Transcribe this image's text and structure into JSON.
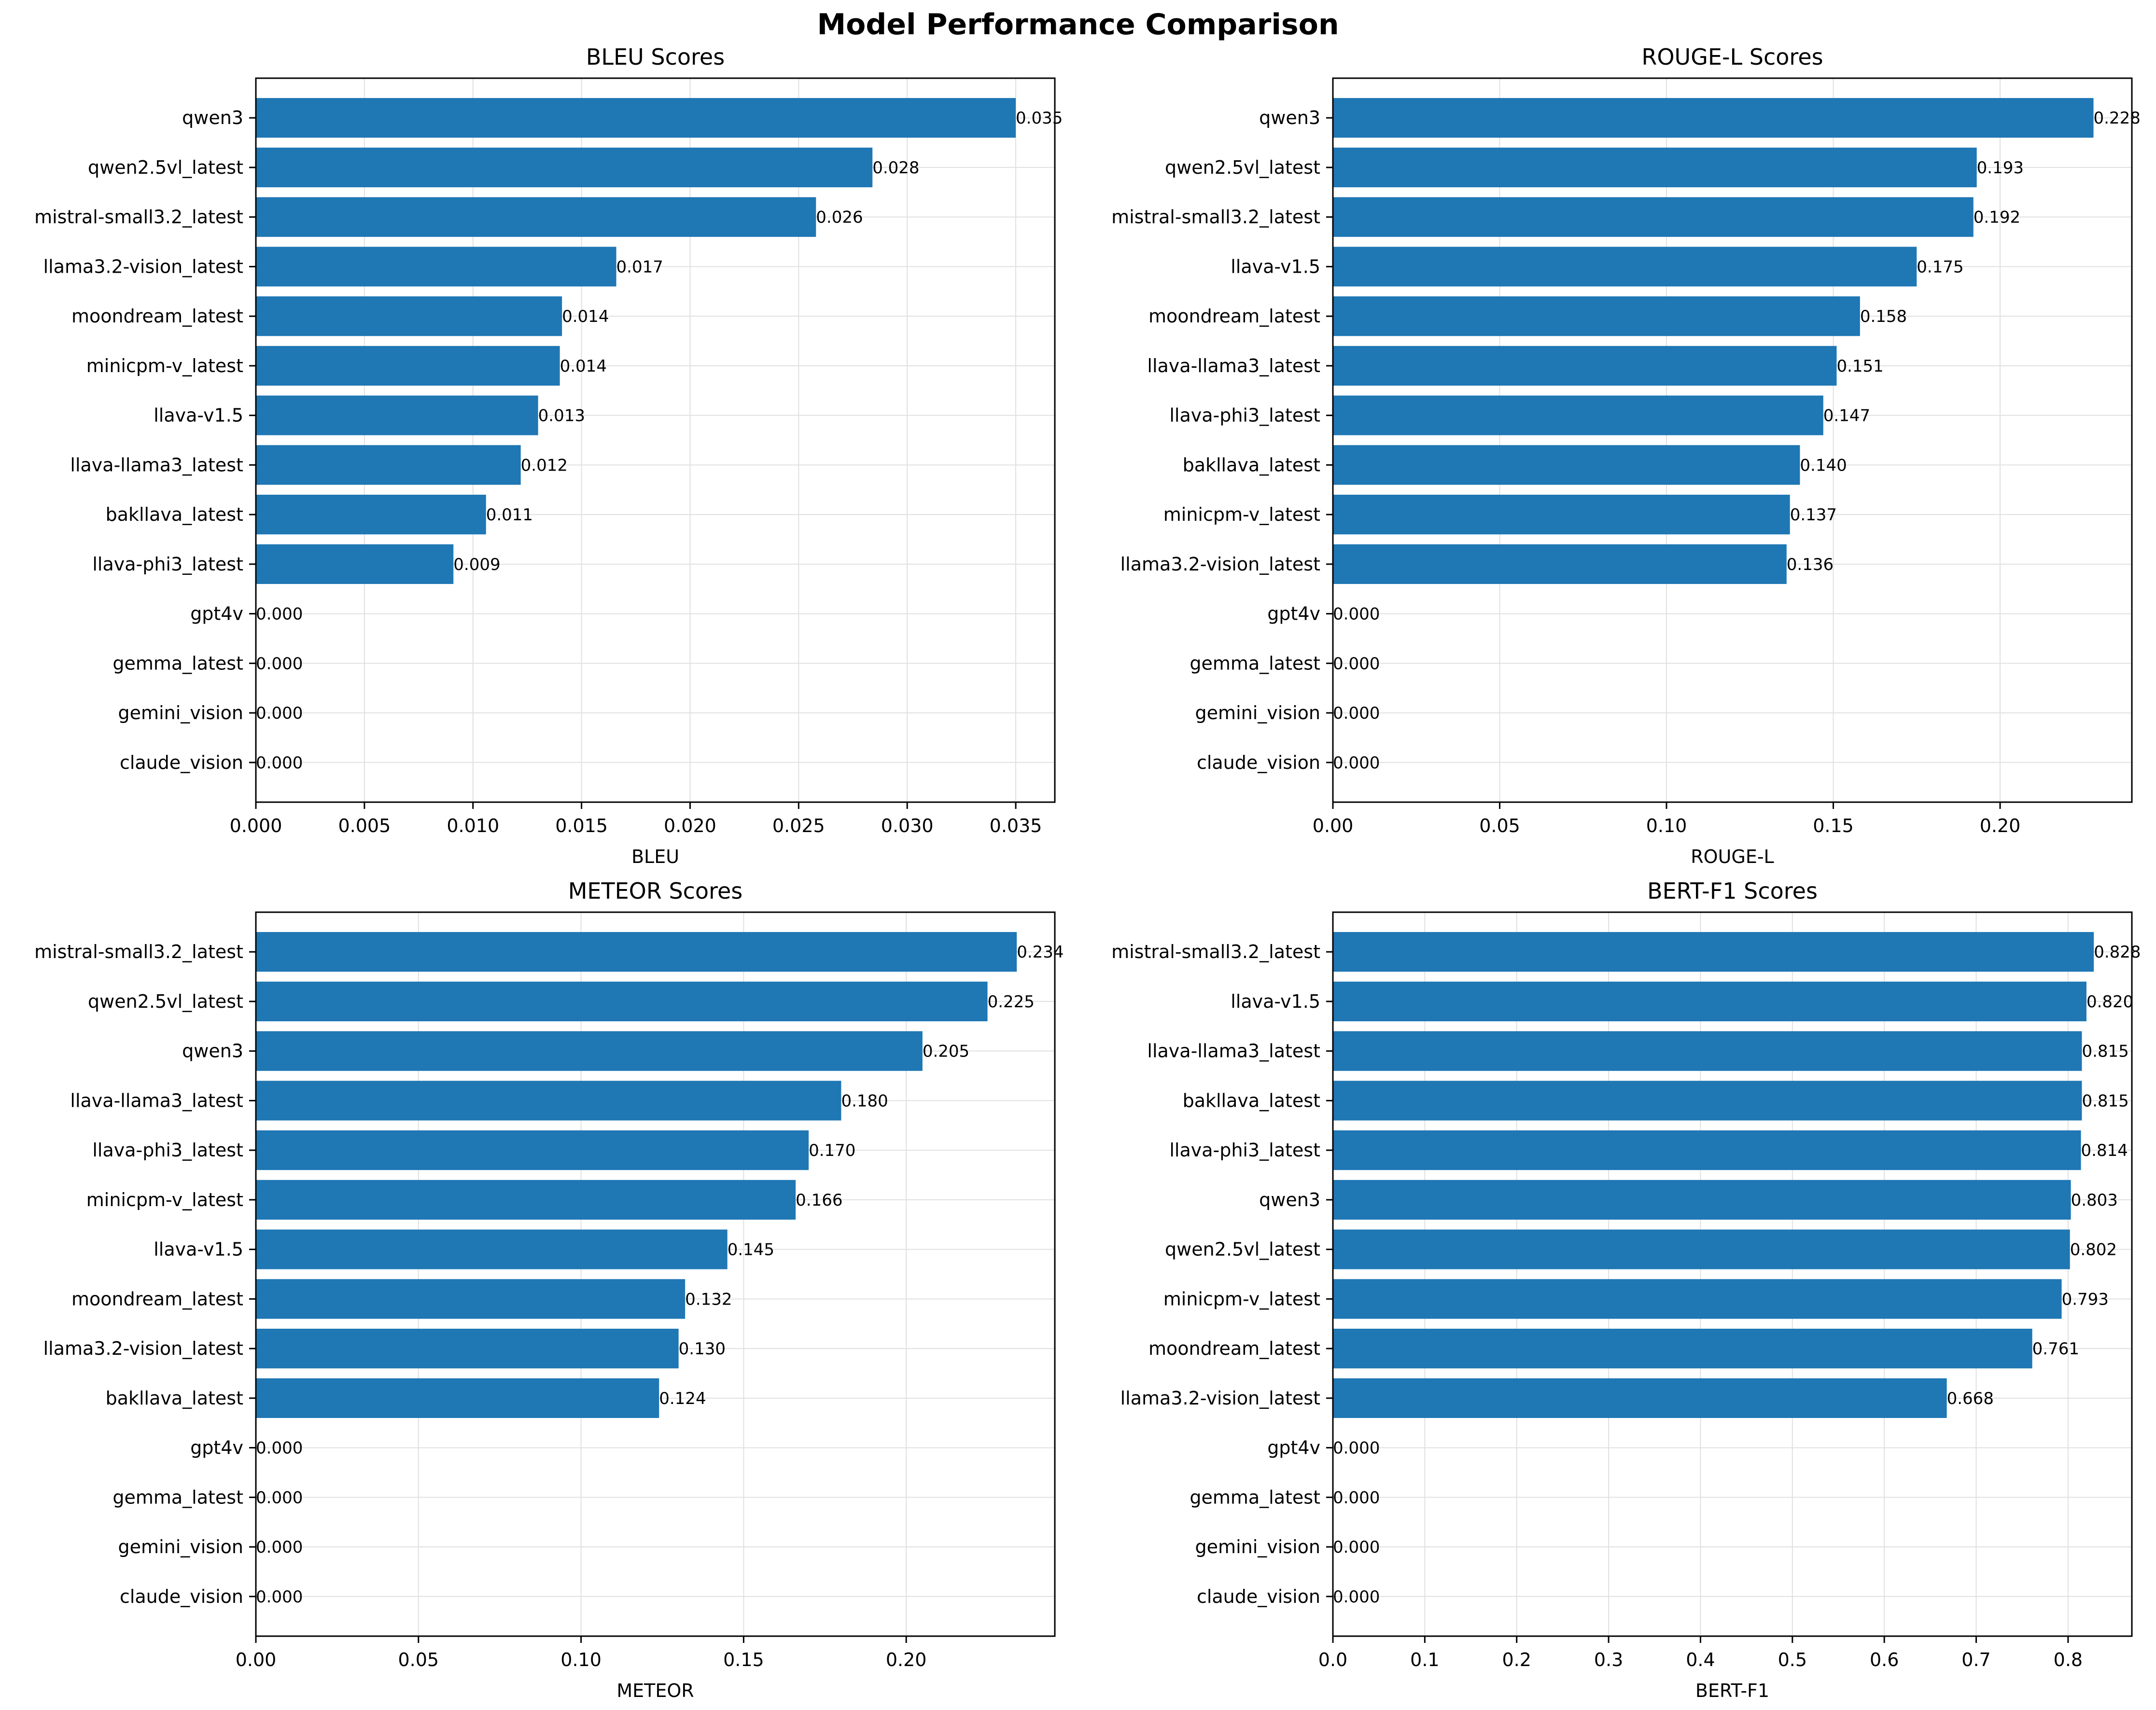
{
  "title": "Model Performance Comparison",
  "bar_color": "#1f77b4",
  "grid_color": "#e0e0e0",
  "chart_data": [
    {
      "type": "bar",
      "orientation": "horizontal",
      "title": "BLEU Scores",
      "xlabel": "BLEU",
      "xlim": [
        0,
        0.0368
      ],
      "xticks": [
        0,
        0.005,
        0.01,
        0.015,
        0.02,
        0.025,
        0.03,
        0.035
      ],
      "xtick_labels": [
        "0.000",
        "0.005",
        "0.010",
        "0.015",
        "0.020",
        "0.025",
        "0.030",
        "0.035"
      ],
      "grid": true,
      "categories": [
        "qwen3",
        "qwen2.5vl_latest",
        "mistral-small3.2_latest",
        "llama3.2-vision_latest",
        "moondream_latest",
        "minicpm-v_latest",
        "llava-v1.5",
        "llava-llama3_latest",
        "bakllava_latest",
        "llava-phi3_latest",
        "gpt4v",
        "gemma_latest",
        "gemini_vision",
        "claude_vision"
      ],
      "values": [
        0.035,
        0.0284,
        0.0258,
        0.0166,
        0.0141,
        0.014,
        0.013,
        0.0122,
        0.0106,
        0.0091,
        0,
        0,
        0,
        0
      ],
      "value_labels": [
        "0.035",
        "0.028",
        "0.026",
        "0.017",
        "0.014",
        "0.014",
        "0.013",
        "0.012",
        "0.011",
        "0.009",
        "0.000",
        "0.000",
        "0.000",
        "0.000"
      ]
    },
    {
      "type": "bar",
      "orientation": "horizontal",
      "title": "ROUGE-L Scores",
      "xlabel": "ROUGE-L",
      "xlim": [
        0,
        0.2395
      ],
      "xticks": [
        0,
        0.05,
        0.1,
        0.15,
        0.2
      ],
      "xtick_labels": [
        "0.00",
        "0.05",
        "0.10",
        "0.15",
        "0.20"
      ],
      "grid": true,
      "categories": [
        "qwen3",
        "qwen2.5vl_latest",
        "mistral-small3.2_latest",
        "llava-v1.5",
        "moondream_latest",
        "llava-llama3_latest",
        "llava-phi3_latest",
        "bakllava_latest",
        "minicpm-v_latest",
        "llama3.2-vision_latest",
        "gpt4v",
        "gemma_latest",
        "gemini_vision",
        "claude_vision"
      ],
      "values": [
        0.228,
        0.193,
        0.192,
        0.175,
        0.158,
        0.151,
        0.147,
        0.14,
        0.137,
        0.136,
        0,
        0,
        0,
        0
      ],
      "value_labels": [
        "0.228",
        "0.193",
        "0.192",
        "0.175",
        "0.158",
        "0.151",
        "0.147",
        "0.140",
        "0.137",
        "0.136",
        "0.000",
        "0.000",
        "0.000",
        "0.000"
      ]
    },
    {
      "type": "bar",
      "orientation": "horizontal",
      "title": "METEOR Scores",
      "xlabel": "METEOR",
      "xlim": [
        0,
        0.2457
      ],
      "xticks": [
        0,
        0.05,
        0.1,
        0.15,
        0.2
      ],
      "xtick_labels": [
        "0.00",
        "0.05",
        "0.10",
        "0.15",
        "0.20"
      ],
      "grid": true,
      "categories": [
        "mistral-small3.2_latest",
        "qwen2.5vl_latest",
        "qwen3",
        "llava-llama3_latest",
        "llava-phi3_latest",
        "minicpm-v_latest",
        "llava-v1.5",
        "moondream_latest",
        "llama3.2-vision_latest",
        "bakllava_latest",
        "gpt4v",
        "gemma_latest",
        "gemini_vision",
        "claude_vision"
      ],
      "values": [
        0.234,
        0.225,
        0.205,
        0.18,
        0.17,
        0.166,
        0.145,
        0.132,
        0.13,
        0.124,
        0,
        0,
        0,
        0
      ],
      "value_labels": [
        "0.234",
        "0.225",
        "0.205",
        "0.180",
        "0.170",
        "0.166",
        "0.145",
        "0.132",
        "0.130",
        "0.124",
        "0.000",
        "0.000",
        "0.000",
        "0.000"
      ]
    },
    {
      "type": "bar",
      "orientation": "horizontal",
      "title": "BERT-F1 Scores",
      "xlabel": "BERT-F1",
      "xlim": [
        0,
        0.8694
      ],
      "xticks": [
        0,
        0.1,
        0.2,
        0.3,
        0.4,
        0.5,
        0.6,
        0.7,
        0.8
      ],
      "xtick_labels": [
        "0.0",
        "0.1",
        "0.2",
        "0.3",
        "0.4",
        "0.5",
        "0.6",
        "0.7",
        "0.8"
      ],
      "grid": true,
      "categories": [
        "mistral-small3.2_latest",
        "llava-v1.5",
        "llava-llama3_latest",
        "bakllava_latest",
        "llava-phi3_latest",
        "qwen3",
        "qwen2.5vl_latest",
        "minicpm-v_latest",
        "moondream_latest",
        "llama3.2-vision_latest",
        "gpt4v",
        "gemma_latest",
        "gemini_vision",
        "claude_vision"
      ],
      "values": [
        0.828,
        0.82,
        0.815,
        0.815,
        0.814,
        0.803,
        0.802,
        0.793,
        0.761,
        0.668,
        0,
        0,
        0,
        0
      ],
      "value_labels": [
        "0.828",
        "0.820",
        "0.815",
        "0.815",
        "0.814",
        "0.803",
        "0.802",
        "0.793",
        "0.761",
        "0.668",
        "0.000",
        "0.000",
        "0.000",
        "0.000"
      ]
    }
  ]
}
